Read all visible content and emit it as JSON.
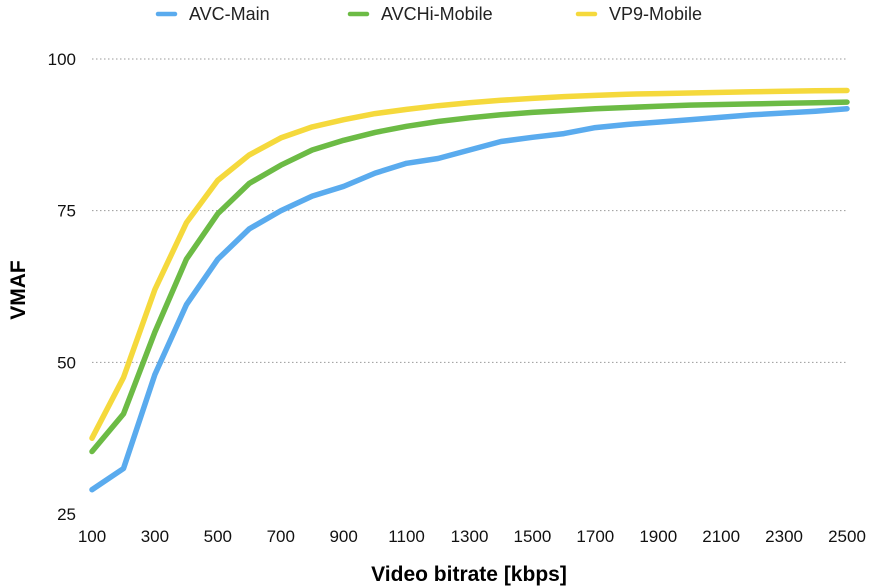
{
  "chart_data": {
    "type": "line",
    "title": "",
    "xlabel": "Video bitrate [kbps]",
    "ylabel": "VMAF",
    "x": [
      100,
      200,
      300,
      400,
      500,
      600,
      700,
      800,
      900,
      1000,
      1100,
      1200,
      1300,
      1400,
      1500,
      1600,
      1700,
      1800,
      1900,
      2000,
      2100,
      2200,
      2300,
      2400,
      2500
    ],
    "x_ticks": [
      100,
      300,
      500,
      700,
      900,
      1100,
      1300,
      1500,
      1700,
      1900,
      2100,
      2300,
      2500
    ],
    "xlim": [
      100,
      2500
    ],
    "y_ticks": [
      25,
      50,
      75,
      100
    ],
    "ylim": [
      25,
      100
    ],
    "grid": "horizontal dotted",
    "legend_position": "top",
    "series": [
      {
        "name": "AVC-Main",
        "color": "#5aabee",
        "values": [
          29.0,
          32.5,
          48.0,
          59.5,
          67.0,
          72.0,
          75.0,
          77.4,
          79.0,
          81.2,
          82.8,
          83.6,
          85.0,
          86.4,
          87.1,
          87.7,
          88.7,
          89.2,
          89.6,
          90.0,
          90.4,
          90.8,
          91.1,
          91.4,
          91.8
        ]
      },
      {
        "name": "AVCHi-Mobile",
        "color": "#6cbb45",
        "values": [
          35.3,
          41.5,
          55.0,
          67.0,
          74.5,
          79.5,
          82.5,
          85.0,
          86.6,
          87.9,
          88.9,
          89.7,
          90.3,
          90.8,
          91.2,
          91.5,
          91.8,
          92.0,
          92.2,
          92.4,
          92.5,
          92.6,
          92.7,
          92.8,
          92.9
        ]
      },
      {
        "name": "VP9-Mobile",
        "color": "#f5d93c",
        "values": [
          37.5,
          47.5,
          62.0,
          73.0,
          80.0,
          84.2,
          87.0,
          88.8,
          90.0,
          91.0,
          91.7,
          92.3,
          92.8,
          93.2,
          93.5,
          93.8,
          94.0,
          94.2,
          94.3,
          94.4,
          94.5,
          94.6,
          94.7,
          94.75,
          94.8
        ]
      }
    ]
  }
}
